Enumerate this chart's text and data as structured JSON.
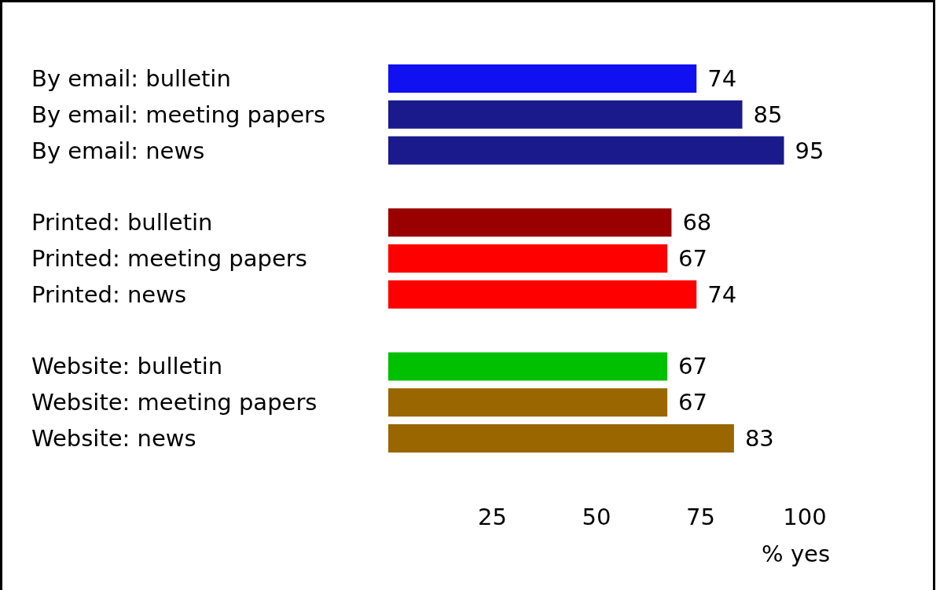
{
  "chart_data": {
    "type": "bar",
    "orientation": "horizontal",
    "xlabel": "% yes",
    "categories": [
      "By email: bulletin",
      "By email: meeting papers",
      "By email: news",
      null,
      "Printed: bulletin",
      "Printed: meeting papers",
      "Printed: news",
      null,
      "Website: bulletin",
      "Website: meeting papers",
      "Website: news"
    ],
    "values": [
      74,
      85,
      95,
      null,
      68,
      67,
      74,
      null,
      67,
      67,
      83
    ],
    "colors": [
      "#1010f0",
      "#1a1a8c",
      "#1a1a8c",
      null,
      "#990000",
      "#ff0000",
      "#ff0000",
      null,
      "#00c000",
      "#996600",
      "#996600"
    ],
    "xlim": [
      0,
      100
    ],
    "xticks": [
      25,
      50,
      75,
      100
    ],
    "data_labels": true,
    "grid": false
  }
}
